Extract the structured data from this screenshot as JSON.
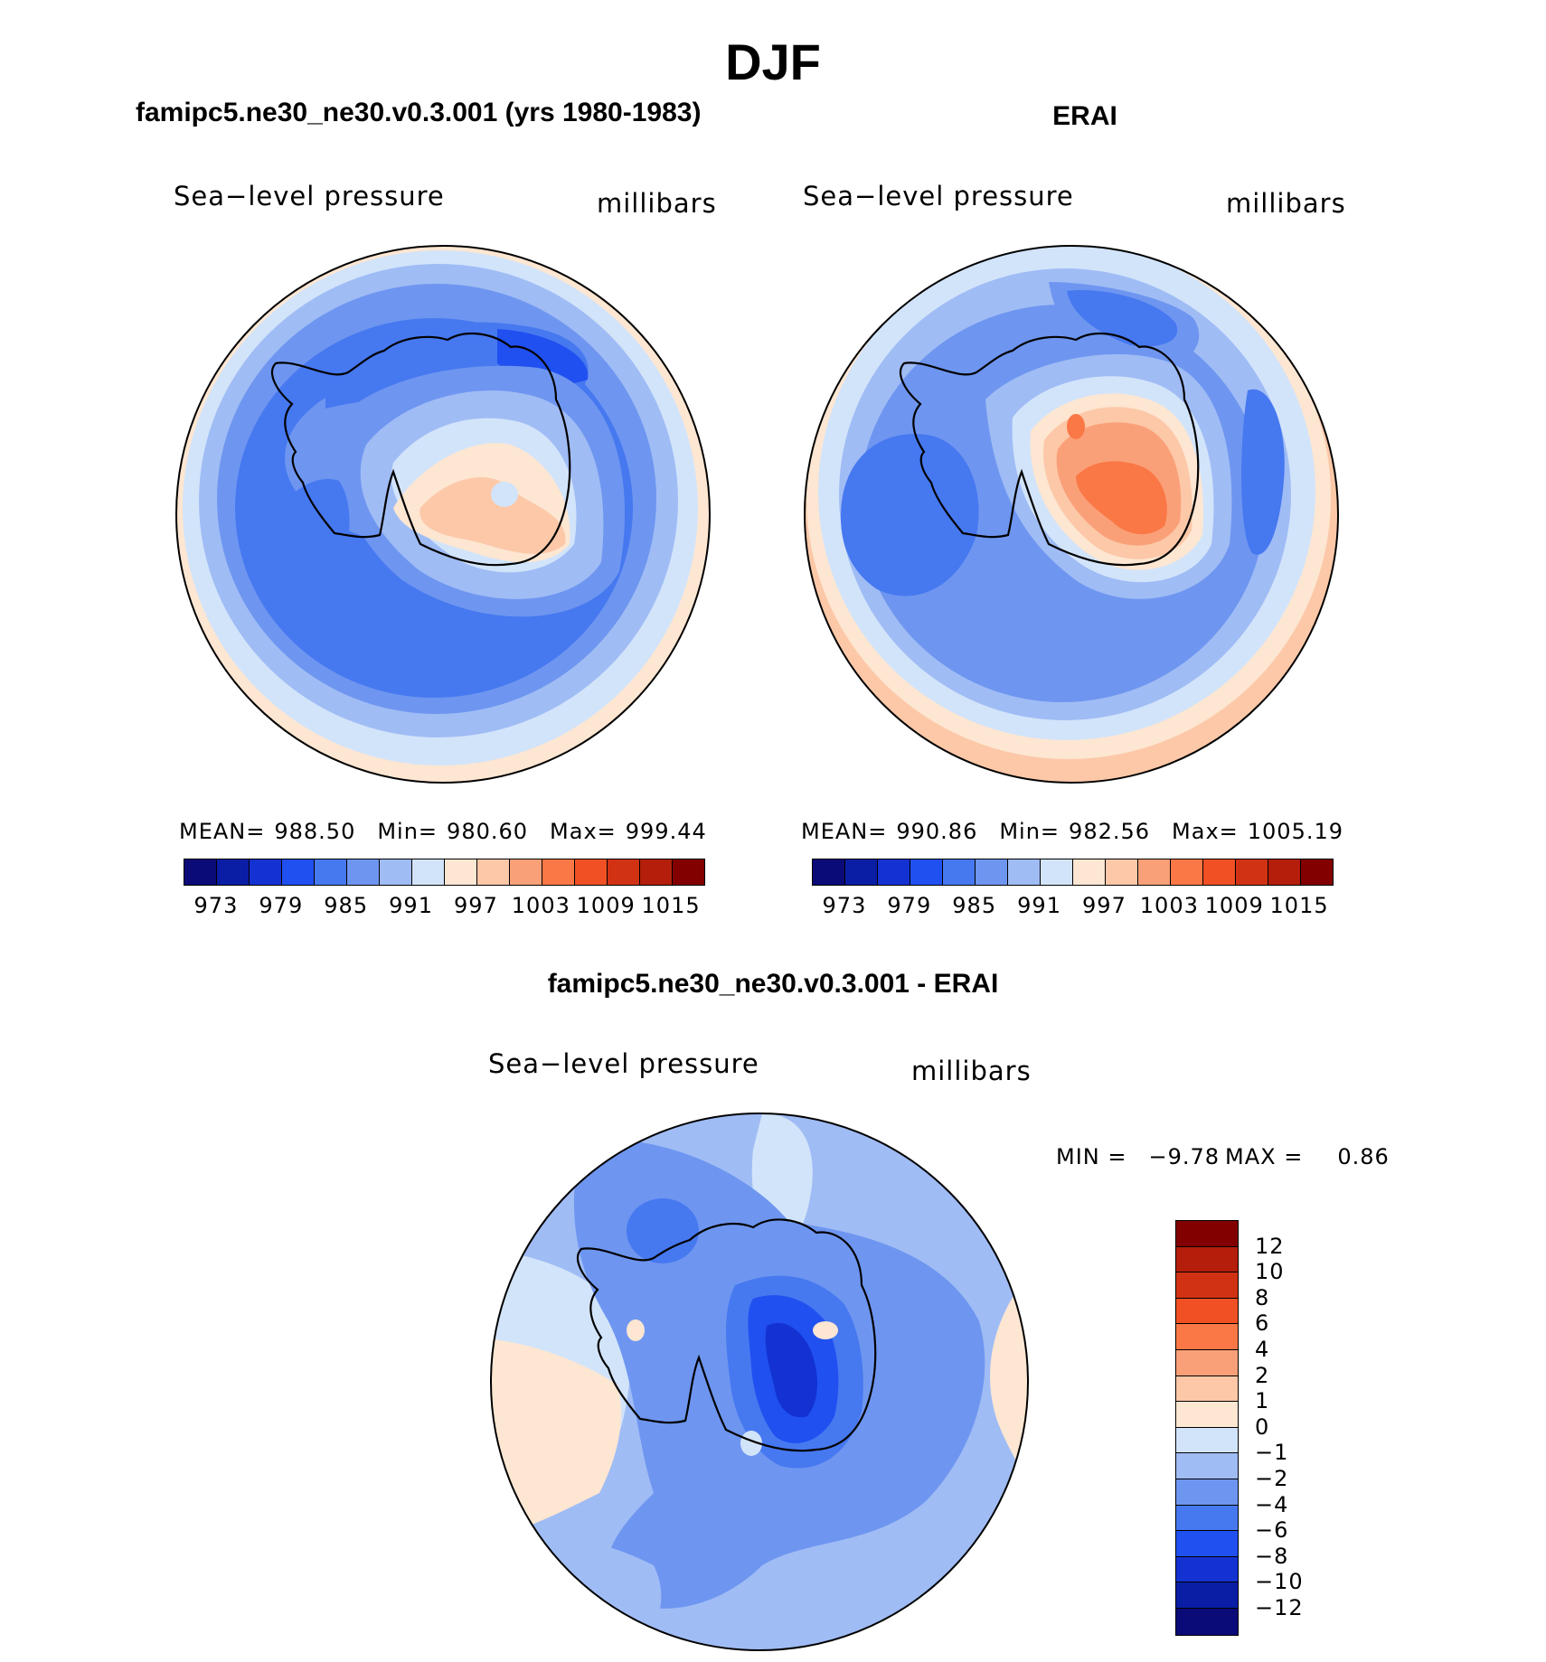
{
  "title": "DJF",
  "panels": {
    "left": {
      "title": "famipc5.ne30_ne30.v0.3.001 (yrs 1980-1983)",
      "variable": "Sea−level pressure",
      "units": "millibars",
      "mean_label": "MEAN=",
      "mean": "988.50",
      "min_label": "Min=",
      "min": "980.60",
      "max_label": "Max=",
      "max": "999.44"
    },
    "right": {
      "title": "ERAI",
      "variable": "Sea−level pressure",
      "units": "millibars",
      "mean_label": "MEAN=",
      "mean": "990.86",
      "min_label": "Min=",
      "min": "982.56",
      "max_label": "Max=",
      "max": "1005.19"
    },
    "diff": {
      "title": "famipc5.ne30_ne30.v0.3.001 - ERAI",
      "variable": "Sea−level pressure",
      "units": "millibars",
      "min_label": "MIN =",
      "min": "−9.78",
      "max_label": "MAX =",
      "max": "0.86"
    }
  },
  "colorbar_main": {
    "colors": [
      "#0a0a78",
      "#0a1ea5",
      "#1432d2",
      "#2050f0",
      "#4678f0",
      "#6e96f0",
      "#a0bcf5",
      "#d2e4fa",
      "#fde6d2",
      "#fcc8a8",
      "#faa078",
      "#fa7846",
      "#f05024",
      "#d23214",
      "#b41e0a",
      "#820000"
    ],
    "labels": [
      "973",
      "979",
      "985",
      "991",
      "997",
      "1003",
      "1009",
      "1015"
    ]
  },
  "colorbar_diff": {
    "colors": [
      "#820000",
      "#b41e0a",
      "#d23214",
      "#f05024",
      "#fa7846",
      "#faa078",
      "#fcc8a8",
      "#fde6d2",
      "#d2e4fa",
      "#a0bcf5",
      "#6e96f0",
      "#4678f0",
      "#2050f0",
      "#1432d2",
      "#0a1ea5",
      "#0a0a78"
    ],
    "labels": [
      "12",
      "10",
      "8",
      "6",
      "4",
      "2",
      "1",
      "0",
      "−1",
      "−2",
      "−4",
      "−6",
      "−8",
      "−10",
      "−12"
    ]
  },
  "chart_data": [
    {
      "type": "heatmap",
      "title": "famipc5.ne30_ne30.v0.3.001 (yrs 1980-1983)",
      "variable": "Sea-level pressure",
      "units": "millibars",
      "projection": "south polar stereographic",
      "mean": 988.5,
      "min": 980.6,
      "max": 999.44,
      "contour_levels": [
        973,
        976,
        979,
        982,
        985,
        988,
        991,
        994,
        997,
        1000,
        1003,
        1006,
        1009,
        1012,
        1015
      ]
    },
    {
      "type": "heatmap",
      "title": "ERAI",
      "variable": "Sea-level pressure",
      "units": "millibars",
      "projection": "south polar stereographic",
      "mean": 990.86,
      "min": 982.56,
      "max": 1005.19,
      "contour_levels": [
        973,
        976,
        979,
        982,
        985,
        988,
        991,
        994,
        997,
        1000,
        1003,
        1006,
        1009,
        1012,
        1015
      ]
    },
    {
      "type": "heatmap",
      "title": "famipc5.ne30_ne30.v0.3.001 - ERAI",
      "variable": "Sea-level pressure",
      "units": "millibars",
      "projection": "south polar stereographic",
      "min": -9.78,
      "max": 0.86,
      "contour_levels": [
        -12,
        -10,
        -8,
        -6,
        -4,
        -2,
        -1,
        0,
        1,
        2,
        4,
        6,
        8,
        10,
        12
      ]
    }
  ]
}
